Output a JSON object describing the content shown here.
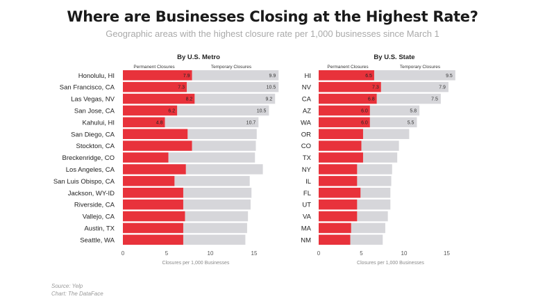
{
  "title": "Where are Businesses Closing at the Highest Rate?",
  "subtitle": "Geographic areas with the highest closure rate per 1,000 businesses since March 1",
  "source": "Source: Yelp",
  "chart_credit": "Chart: The DataFace",
  "colors": {
    "permanent": "#e8323b",
    "temporary": "#d6d6da",
    "axis_text": "#555555",
    "label_text": "#222222"
  },
  "chart_data": [
    {
      "type": "bar",
      "stacked": true,
      "orientation": "horizontal",
      "title": "By U.S. Metro",
      "legend": [
        "Permanent Closures",
        "Temporary Closures"
      ],
      "xlabel": "Closures per 1,000 Businesses",
      "xlim": [
        0,
        16
      ],
      "xticks": [
        0,
        5,
        10,
        15
      ],
      "categories": [
        "Honolulu, HI",
        "San Francisco, CA",
        "Las Vegas, NV",
        "San Jose, CA",
        "Kahului, HI",
        "San Diego, CA",
        "Stockton, CA",
        "Breckenridge, CO",
        "Los Angeles, CA",
        "San Luis Obispo, CA",
        "Jackson, WY-ID",
        "Riverside, CA",
        "Vallejo, CA",
        "Austin, TX",
        "Seattle, WA"
      ],
      "series": [
        {
          "name": "Permanent Closures",
          "values": [
            7.9,
            7.3,
            8.2,
            6.2,
            4.8,
            7.4,
            7.9,
            5.2,
            7.2,
            5.9,
            6.9,
            6.9,
            7.1,
            6.9,
            6.9
          ]
        },
        {
          "name": "Temporary Closures",
          "values": [
            9.9,
            10.5,
            9.2,
            10.5,
            10.7,
            7.9,
            7.3,
            9.9,
            8.8,
            8.6,
            7.8,
            7.7,
            7.2,
            7.3,
            7.1
          ]
        }
      ],
      "labeled_count": 5
    },
    {
      "type": "bar",
      "stacked": true,
      "orientation": "horizontal",
      "title": "By U.S. State",
      "legend": [
        "Permanent Closures",
        "Temporary Closures"
      ],
      "xlabel": "Closures per 1,000 Businesses",
      "xlim": [
        0,
        16
      ],
      "xticks": [
        0,
        5,
        10,
        15
      ],
      "categories": [
        "HI",
        "NV",
        "CA",
        "AZ",
        "WA",
        "OR",
        "CO",
        "TX",
        "NY",
        "IL",
        "FL",
        "UT",
        "VA",
        "MA",
        "NM"
      ],
      "series": [
        {
          "name": "Permanent Closures",
          "values": [
            6.5,
            7.3,
            6.8,
            6.0,
            6.0,
            5.2,
            5.0,
            5.2,
            4.5,
            4.5,
            4.9,
            4.5,
            4.5,
            3.8,
            3.7
          ]
        },
        {
          "name": "Temporary Closures",
          "values": [
            9.5,
            7.9,
            7.5,
            5.8,
            5.5,
            5.4,
            4.4,
            4.0,
            4.1,
            4.0,
            3.5,
            3.9,
            3.6,
            4.0,
            3.8
          ]
        }
      ],
      "labeled_count": 5
    }
  ]
}
